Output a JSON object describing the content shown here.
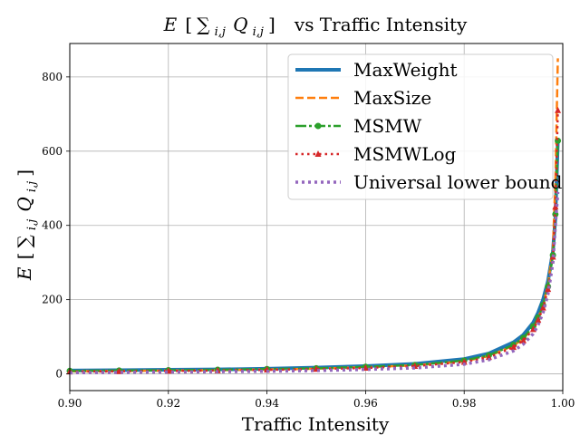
{
  "chart_data": {
    "type": "line",
    "title": "E [∑i,j Qi,j]   vs Traffic Intensity",
    "title_parts": {
      "expr_E": "E",
      "expr_sum": "∑",
      "expr_sub_ij": "i,j",
      "expr_Q": "Q",
      "expr_sub_Q": "i,j",
      "suffix": "vs Traffic Intensity"
    },
    "xlabel": "Traffic Intensity",
    "ylabel": "E [∑i,j Qi,j]",
    "xlim": [
      0.9,
      1.0
    ],
    "ylim": [
      -45,
      890
    ],
    "xticks": [
      "0.90",
      "0.92",
      "0.94",
      "0.96",
      "0.98",
      "1.00"
    ],
    "xtick_values": [
      0.9,
      0.92,
      0.94,
      0.96,
      0.98,
      1.0
    ],
    "yticks": [
      "0",
      "200",
      "400",
      "600",
      "800"
    ],
    "ytick_values": [
      0,
      200,
      400,
      600,
      800
    ],
    "grid": true,
    "legend_position": "top-right",
    "x": [
      0.9,
      0.91,
      0.92,
      0.93,
      0.94,
      0.95,
      0.96,
      0.97,
      0.98,
      0.985,
      0.99,
      0.992,
      0.994,
      0.995,
      0.996,
      0.997,
      0.998,
      0.9985,
      0.999
    ],
    "series": [
      {
        "name": "MaxWeight",
        "color": "#1f77b4",
        "style": "solid",
        "values": [
          9,
          10,
          11,
          12,
          14,
          17,
          21,
          27,
          40,
          55,
          85,
          105,
          138,
          165,
          200,
          250,
          330,
          420,
          630
        ]
      },
      {
        "name": "MaxSize",
        "color": "#ff7f0e",
        "style": "dashed",
        "values": [
          7,
          8,
          9,
          10,
          12,
          14,
          18,
          23,
          34,
          48,
          76,
          95,
          125,
          150,
          185,
          240,
          340,
          520,
          850
        ]
      },
      {
        "name": "MSMW",
        "color": "#2ca02c",
        "style": "dashdot-marker-circle",
        "values": [
          8,
          9,
          10,
          11,
          13,
          15,
          19,
          24,
          36,
          50,
          78,
          97,
          128,
          152,
          185,
          235,
          320,
          430,
          628
        ]
      },
      {
        "name": "MSMWLog",
        "color": "#d62728",
        "style": "dotted-marker-triangle",
        "values": [
          6,
          7,
          8,
          9,
          11,
          13,
          16,
          21,
          32,
          45,
          72,
          90,
          120,
          145,
          178,
          228,
          315,
          450,
          710
        ]
      },
      {
        "name": "Universal lower bound",
        "color": "#9467bd",
        "style": "dotted",
        "values": [
          3,
          4,
          5,
          6,
          7,
          9,
          12,
          16,
          26,
          38,
          62,
          80,
          108,
          132,
          165,
          215,
          300,
          400,
          490
        ]
      }
    ]
  }
}
